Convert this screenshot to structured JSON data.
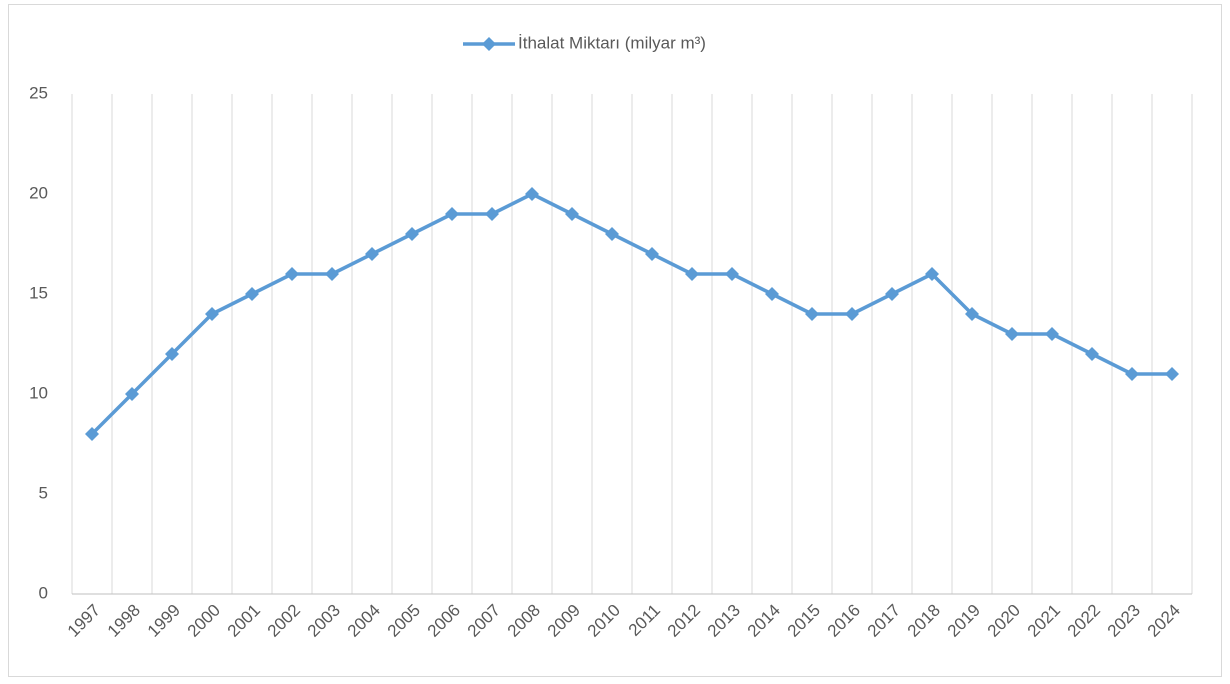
{
  "chart_data": {
    "type": "line",
    "categories": [
      "1997",
      "1998",
      "1999",
      "2000",
      "2001",
      "2002",
      "2003",
      "2004",
      "2005",
      "2006",
      "2007",
      "2008",
      "2009",
      "2010",
      "2011",
      "2012",
      "2013",
      "2014",
      "2015",
      "2016",
      "2017",
      "2018",
      "2019",
      "2020",
      "2021",
      "2022",
      "2023",
      "2024"
    ],
    "series": [
      {
        "name": "İthalat Miktarı (milyar m³)",
        "color": "#5b9bd5",
        "values": [
          8,
          10,
          12,
          14,
          15,
          16,
          16,
          17,
          18,
          19,
          19,
          20,
          19,
          18,
          17,
          16,
          16,
          15,
          14,
          14,
          15,
          16,
          14,
          13,
          13,
          12,
          11,
          11
        ]
      }
    ],
    "ylim": [
      0,
      25
    ],
    "yticks": [
      0,
      5,
      10,
      15,
      20,
      25
    ],
    "grid": "x",
    "legend": "top"
  }
}
